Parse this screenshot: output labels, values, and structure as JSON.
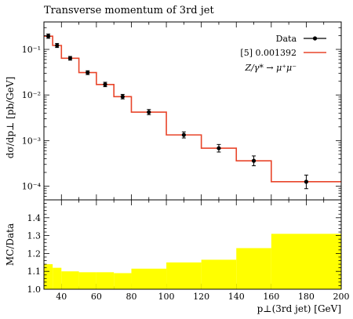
{
  "title": "Transverse momentum of 3rd jet",
  "chart_data": {
    "type": "line",
    "title": "Transverse momentum of 3rd jet",
    "xlabel": "p⊥(3rd jet) [GeV]",
    "ylabel": "dσ/dp⊥ [pb/GeV]",
    "xlim": [
      30,
      200
    ],
    "ylim": [
      5e-05,
      0.4
    ],
    "yscale": "log",
    "x_ticks": [
      "40",
      "60",
      "80",
      "100",
      "120",
      "140",
      "160",
      "180",
      "200"
    ],
    "y_ticks": [
      {
        "value": 0.1,
        "label": "10⁻¹"
      },
      {
        "value": 0.01,
        "label": "10⁻²"
      },
      {
        "value": 0.001,
        "label": "10⁻³"
      },
      {
        "value": 0.0001,
        "label": "10⁻⁴"
      }
    ],
    "legend": {
      "placement": "top-right",
      "entries": [
        {
          "label": "Data",
          "color": "#000000",
          "marker": "point-with-errorbar"
        },
        {
          "label": "[5] 0.001392",
          "color": "#e8452a",
          "marker": "line"
        }
      ],
      "process": "Z/γ* → μ⁺μ⁻"
    },
    "series": [
      {
        "name": "Data",
        "color": "#000000",
        "points": [
          {
            "x": 32.5,
            "y": 0.195,
            "ylo": 0.175,
            "yhi": 0.218
          },
          {
            "x": 37.5,
            "y": 0.122,
            "ylo": 0.11,
            "yhi": 0.135
          },
          {
            "x": 45,
            "y": 0.064,
            "ylo": 0.058,
            "yhi": 0.07
          },
          {
            "x": 55,
            "y": 0.031,
            "ylo": 0.028,
            "yhi": 0.034
          },
          {
            "x": 65,
            "y": 0.017,
            "ylo": 0.0152,
            "yhi": 0.019
          },
          {
            "x": 75,
            "y": 0.0092,
            "ylo": 0.0082,
            "yhi": 0.0103
          },
          {
            "x": 90,
            "y": 0.0042,
            "ylo": 0.0037,
            "yhi": 0.0048
          },
          {
            "x": 110,
            "y": 0.00133,
            "ylo": 0.00114,
            "yhi": 0.00155
          },
          {
            "x": 130,
            "y": 0.00068,
            "ylo": 0.00056,
            "yhi": 0.00082
          },
          {
            "x": 150,
            "y": 0.00036,
            "ylo": 0.00028,
            "yhi": 0.00046
          },
          {
            "x": 180,
            "y": 0.000125,
            "ylo": 8.8e-05,
            "yhi": 0.000175
          }
        ]
      },
      {
        "name": "[5] 0.001392",
        "color": "#e8452a",
        "bins": [
          {
            "xlo": 30,
            "xhi": 35,
            "y": 0.195
          },
          {
            "xlo": 35,
            "xhi": 40,
            "y": 0.122
          },
          {
            "xlo": 40,
            "xhi": 50,
            "y": 0.064
          },
          {
            "xlo": 50,
            "xhi": 60,
            "y": 0.031
          },
          {
            "xlo": 60,
            "xhi": 70,
            "y": 0.017
          },
          {
            "xlo": 70,
            "xhi": 80,
            "y": 0.0092
          },
          {
            "xlo": 80,
            "xhi": 100,
            "y": 0.0042
          },
          {
            "xlo": 100,
            "xhi": 120,
            "y": 0.00133
          },
          {
            "xlo": 120,
            "xhi": 140,
            "y": 0.00068
          },
          {
            "xlo": 140,
            "xhi": 160,
            "y": 0.00036
          },
          {
            "xlo": 160,
            "xhi": 200,
            "y": 0.000125
          }
        ]
      }
    ],
    "ratio_panel": {
      "ylabel": "MC/Data",
      "ylim": [
        1.0,
        1.5
      ],
      "y_ticks": [
        "1.0",
        "1.1",
        "1.2",
        "1.3",
        "1.4"
      ],
      "band_color": "#ffff00",
      "band": [
        {
          "xlo": 30,
          "xhi": 35,
          "hi": 1.14
        },
        {
          "xlo": 35,
          "xhi": 40,
          "hi": 1.12
        },
        {
          "xlo": 40,
          "xhi": 50,
          "hi": 1.1
        },
        {
          "xlo": 50,
          "xhi": 60,
          "hi": 1.095
        },
        {
          "xlo": 60,
          "xhi": 70,
          "hi": 1.095
        },
        {
          "xlo": 70,
          "xhi": 80,
          "hi": 1.09
        },
        {
          "xlo": 80,
          "xhi": 100,
          "hi": 1.115
        },
        {
          "xlo": 100,
          "xhi": 120,
          "hi": 1.15
        },
        {
          "xlo": 120,
          "xhi": 140,
          "hi": 1.165
        },
        {
          "xlo": 140,
          "xhi": 160,
          "hi": 1.23
        },
        {
          "xlo": 160,
          "xhi": 200,
          "hi": 1.31
        }
      ]
    }
  }
}
